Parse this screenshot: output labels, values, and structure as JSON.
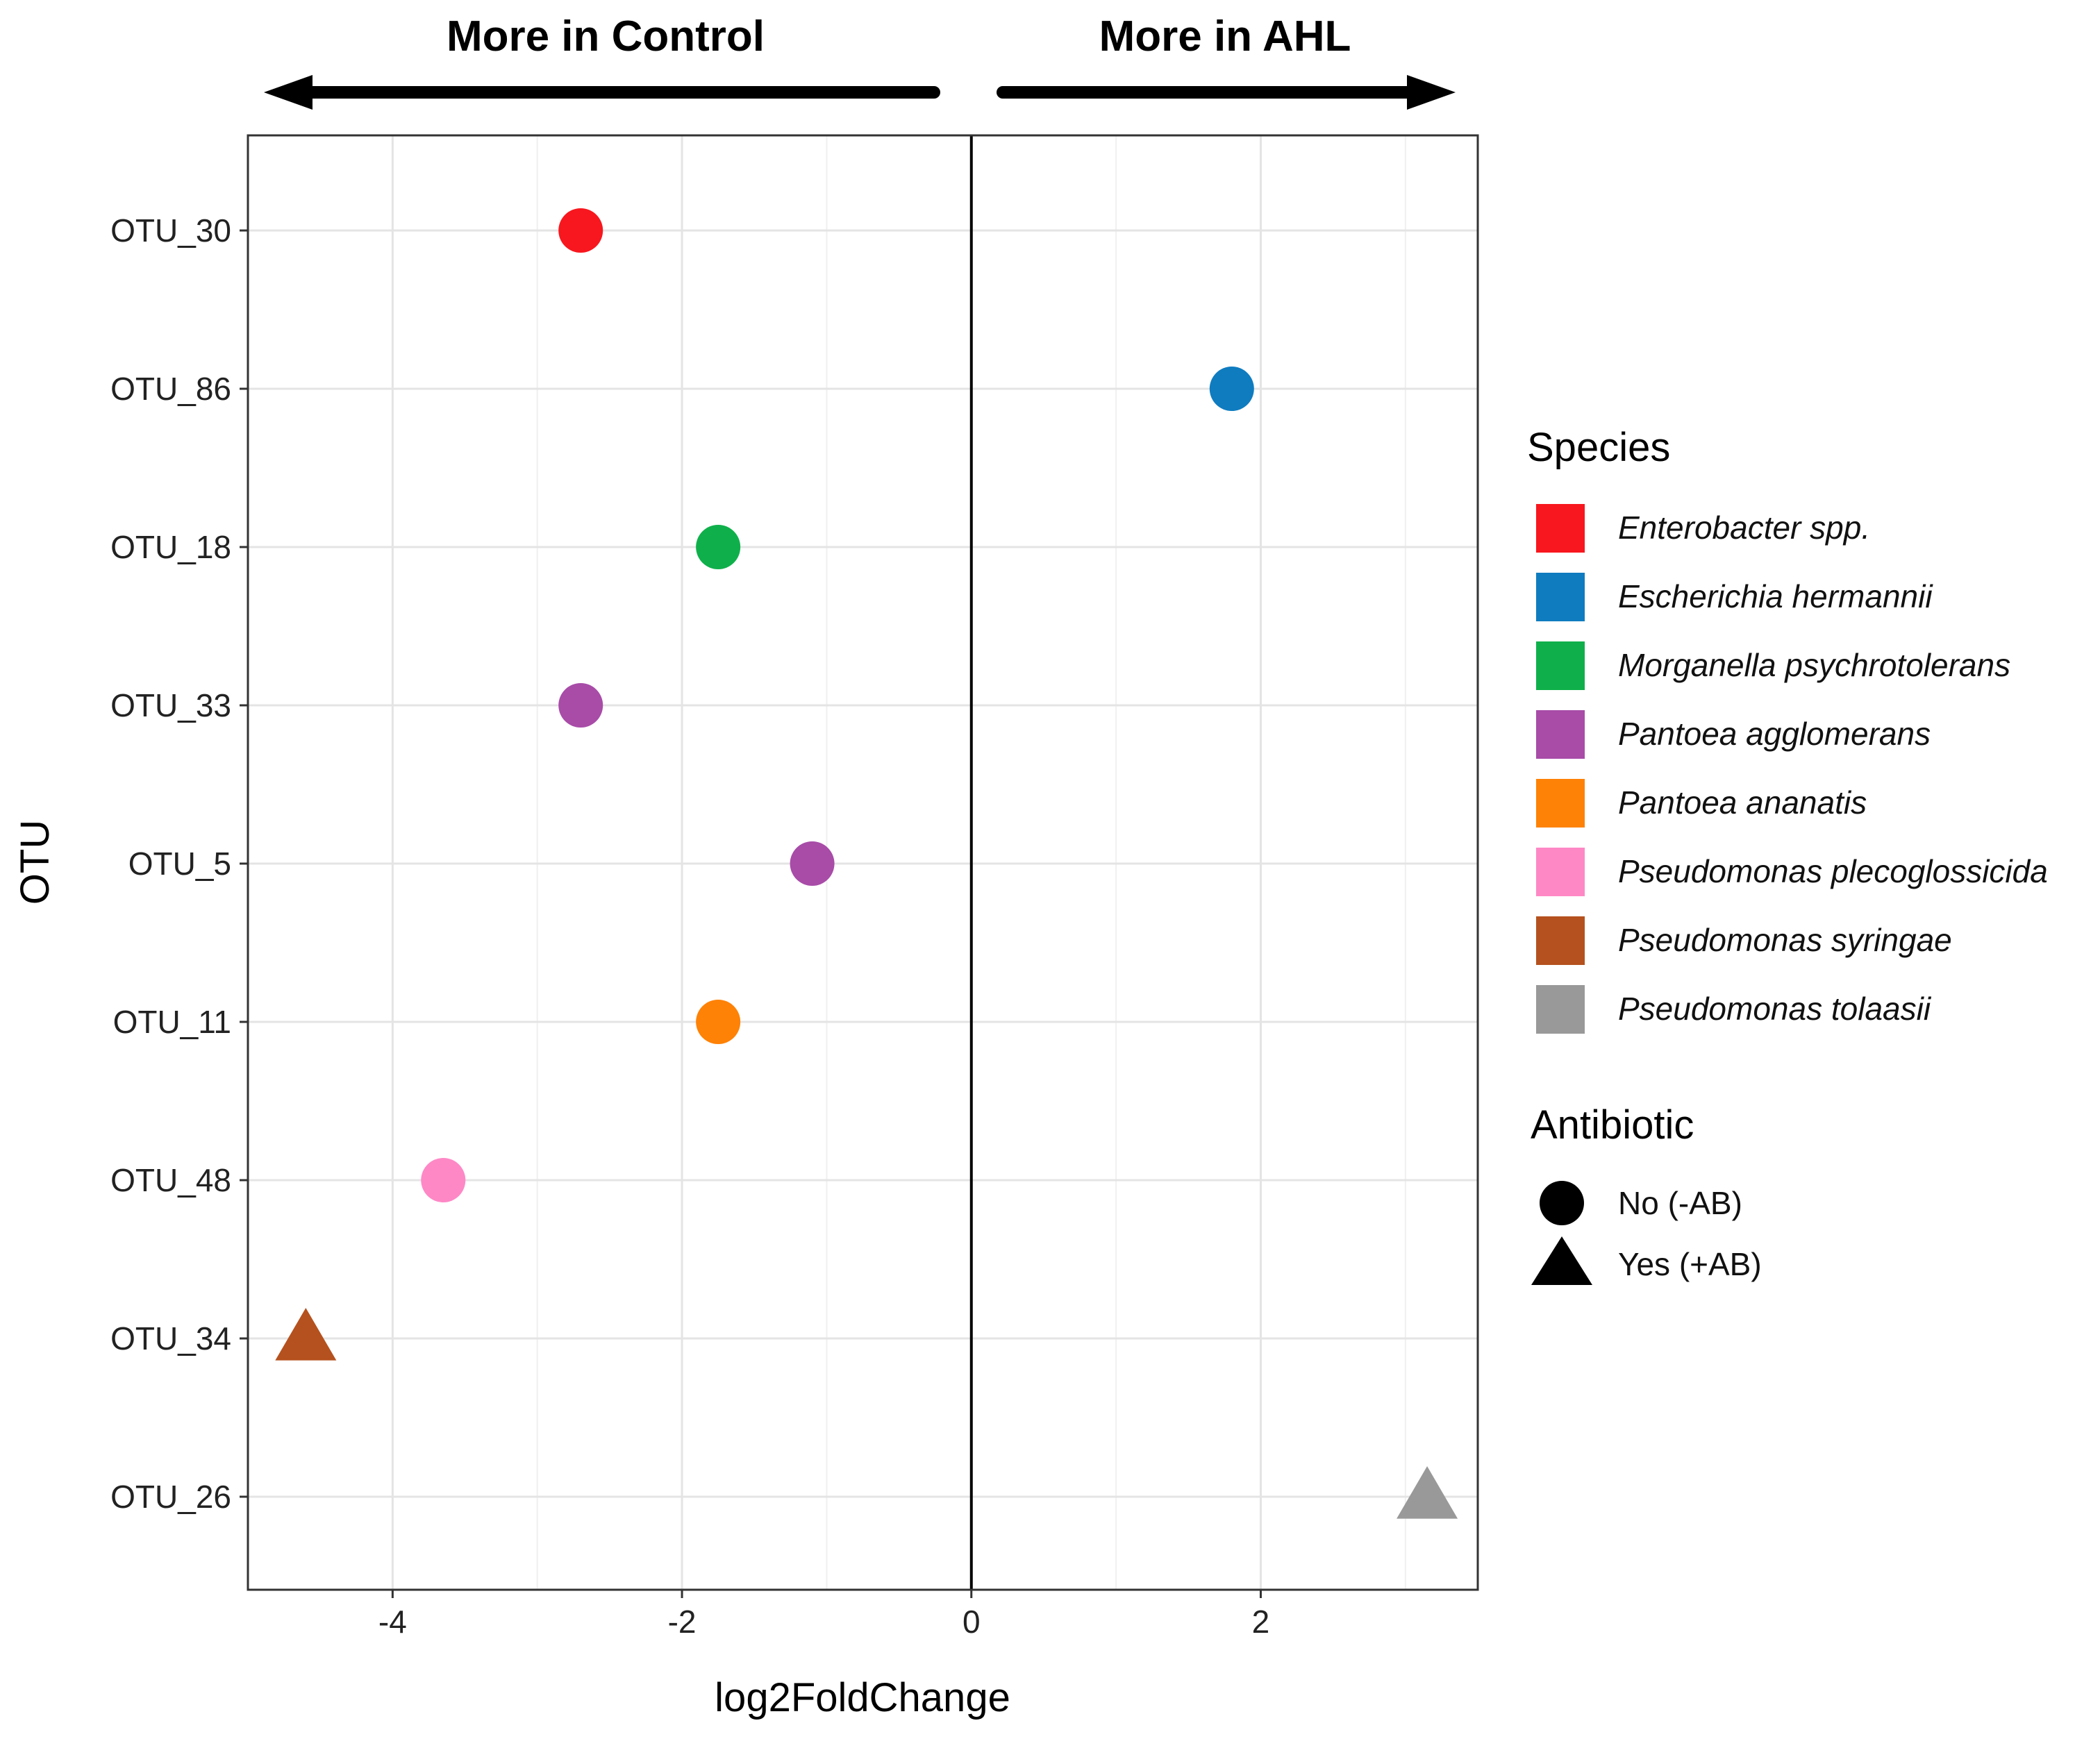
{
  "chart_data": {
    "type": "scatter",
    "xlabel": "log2FoldChange",
    "ylabel": "OTU",
    "xlim": [
      -5,
      3.5
    ],
    "x_ticks": [
      -4,
      -2,
      0,
      2
    ],
    "x_tick_labels": [
      "-4",
      "-2",
      "0",
      "2"
    ],
    "reference_line_x": 0,
    "grid": true,
    "annotations": {
      "left": "More in Control",
      "right": "More in AHL"
    },
    "categories": [
      "OTU_30",
      "OTU_86",
      "OTU_18",
      "OTU_33",
      "OTU_5",
      "OTU_11",
      "OTU_48",
      "OTU_34",
      "OTU_26"
    ],
    "points": [
      {
        "otu": "OTU_30",
        "x": -2.7,
        "species": "Enterobacter spp.",
        "antibiotic": "No (-AB)"
      },
      {
        "otu": "OTU_86",
        "x": 1.8,
        "species": "Escherichia hermannii",
        "antibiotic": "No (-AB)"
      },
      {
        "otu": "OTU_18",
        "x": -1.75,
        "species": "Morganella psychrotolerans",
        "antibiotic": "No (-AB)"
      },
      {
        "otu": "OTU_33",
        "x": -2.7,
        "species": "Pantoea agglomerans",
        "antibiotic": "No (-AB)"
      },
      {
        "otu": "OTU_5",
        "x": -1.1,
        "species": "Pantoea agglomerans",
        "antibiotic": "No (-AB)"
      },
      {
        "otu": "OTU_11",
        "x": -1.75,
        "species": "Pantoea ananatis",
        "antibiotic": "No (-AB)"
      },
      {
        "otu": "OTU_48",
        "x": -3.65,
        "species": "Pseudomonas plecoglossicida",
        "antibiotic": "No (-AB)"
      },
      {
        "otu": "OTU_34",
        "x": -4.6,
        "species": "Pseudomonas syringae",
        "antibiotic": "Yes (+AB)"
      },
      {
        "otu": "OTU_26",
        "x": 3.15,
        "species": "Pseudomonas tolaasii",
        "antibiotic": "Yes (+AB)"
      }
    ],
    "legend": {
      "placement": "right",
      "species_title": "Species",
      "species": [
        {
          "name": "Enterobacter spp.",
          "color": "#f8171e"
        },
        {
          "name": "Escherichia hermannii",
          "color": "#0f7cc0"
        },
        {
          "name": "Morganella psychrotolerans",
          "color": "#0fb04b"
        },
        {
          "name": "Pantoea agglomerans",
          "color": "#a84ca8"
        },
        {
          "name": "Pantoea ananatis",
          "color": "#fe8206"
        },
        {
          "name": "Pseudomonas plecoglossicida",
          "color": "#fe88c6"
        },
        {
          "name": "Pseudomonas syringae",
          "color": "#b5511e"
        },
        {
          "name": "Pseudomonas tolaasii",
          "color": "#999999"
        }
      ],
      "antibiotic_title": "Antibiotic",
      "antibiotic": [
        {
          "label": "No (-AB)",
          "shape": "circle"
        },
        {
          "label": "Yes (+AB)",
          "shape": "triangle"
        }
      ]
    }
  }
}
